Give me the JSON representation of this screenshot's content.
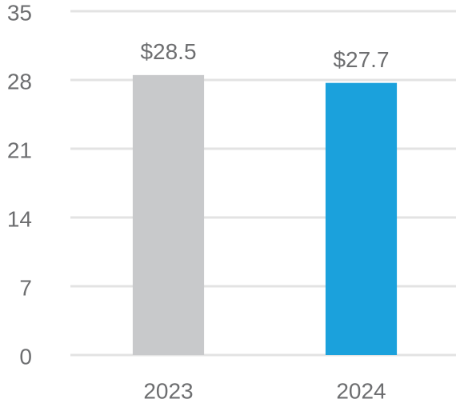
{
  "chart_data": {
    "type": "bar",
    "categories": [
      "2023",
      "2024"
    ],
    "values": [
      28.5,
      27.7
    ],
    "value_labels": [
      "$28.5",
      "$27.7"
    ],
    "colors": [
      "#c8c9cb",
      "#1ba1dc"
    ],
    "ylim": [
      0,
      35
    ],
    "yticks": [
      0,
      7,
      14,
      21,
      28,
      35
    ],
    "grid": true
  }
}
